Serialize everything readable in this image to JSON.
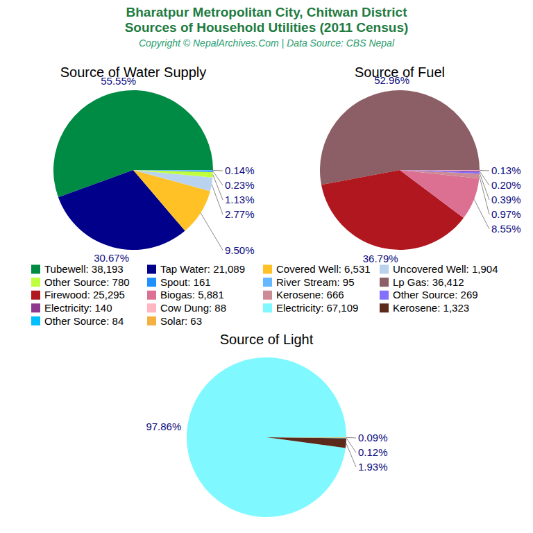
{
  "title": [
    "Bharatpur Metropolitan City, Chitwan District",
    "Sources of Household Utilities (2011 Census)"
  ],
  "subtitle": "Copyright © NepalArchives.Com | Data Source: CBS Nepal",
  "chart_data": [
    {
      "type": "pie",
      "title": "Source of Water Supply",
      "categories": [
        "Tubewell: 38,193",
        "Tap Water: 21,089",
        "Covered Well: 6,531",
        "Uncovered Well: 1,904",
        "Other Source: 780",
        "Spout: 161",
        "River Stream: 95"
      ],
      "values": [
        55.55,
        30.67,
        9.5,
        2.77,
        1.13,
        0.23,
        0.14
      ],
      "value_labels": [
        "55.55%",
        "30.67%",
        "9.50%",
        "2.77%",
        "1.13%",
        "0.23%",
        "0.14%"
      ],
      "colors": [
        "#008b45",
        "#00008b",
        "#ffc125",
        "#b9d3ee",
        "#c0ff3e",
        "#1e90ff",
        "#63b8ff"
      ],
      "data_labels": true
    },
    {
      "type": "pie",
      "title": "Source of Fuel",
      "categories": [
        "Lp Gas: 36,412",
        "Firewood: 25,295",
        "Biogas: 5,881",
        "Kerosene: 666",
        "Other Source: 269",
        "Electricity: 140",
        "Cow Dung: 88"
      ],
      "values": [
        52.96,
        36.79,
        8.55,
        0.97,
        0.39,
        0.2,
        0.13
      ],
      "value_labels": [
        "52.96%",
        "36.79%",
        "8.55%",
        "0.97%",
        "0.39%",
        "0.20%",
        "0.13%"
      ],
      "colors": [
        "#8b5f65",
        "#b0171f",
        "#db7093",
        "#cd8c95",
        "#8470ff",
        "#8e388e",
        "#ffb6c1"
      ],
      "data_labels": true
    },
    {
      "type": "pie",
      "title": "Source of Light",
      "categories": [
        "Electricity: 67,109",
        "Kerosene: 1,323",
        "Other Source: 84",
        "Solar: 63"
      ],
      "values": [
        97.86,
        1.93,
        0.12,
        0.09
      ],
      "value_labels": [
        "97.86%",
        "1.93%",
        "0.12%",
        "0.09%"
      ],
      "colors": [
        "#7ff9ff",
        "#5c2a1a",
        "#00bfff",
        "#f5b041"
      ],
      "data_labels": true
    }
  ]
}
